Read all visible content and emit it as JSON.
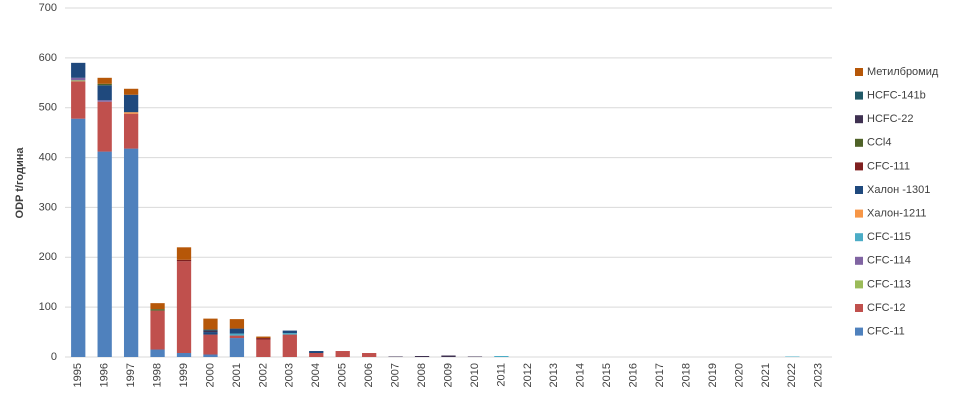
{
  "chart_data": {
    "type": "stacked-bar",
    "y_label": "ODP t/година",
    "categories": [
      "1995",
      "1996",
      "1997",
      "1998",
      "1999",
      "2000",
      "2001",
      "2002",
      "2003",
      "2004",
      "2005",
      "2006",
      "2007",
      "2008",
      "2009",
      "2010",
      "2011",
      "2012",
      "2013",
      "2014",
      "2015",
      "2016",
      "2017",
      "2018",
      "2019",
      "2020",
      "2021",
      "2022",
      "2023"
    ],
    "ylim": [
      0,
      700
    ],
    "yticks": [
      0,
      100,
      200,
      300,
      400,
      500,
      600,
      700
    ],
    "grid": true,
    "legend": "right",
    "series": [
      {
        "name": "CFC-11",
        "color": "#4f81bd",
        "values": [
          478,
          412,
          418,
          15,
          8,
          5,
          38,
          0,
          0,
          0,
          0,
          0,
          0,
          0,
          0,
          0,
          0,
          0,
          0,
          0,
          0,
          0,
          0,
          0,
          0,
          0,
          0,
          0,
          0
        ]
      },
      {
        "name": "CFC-12",
        "color": "#c0504d",
        "values": [
          75,
          100,
          70,
          78,
          184,
          40,
          5,
          35,
          45,
          8,
          12,
          8,
          0,
          0,
          0,
          0,
          0,
          0,
          0,
          0,
          0,
          0,
          0,
          0,
          0,
          0,
          0,
          0,
          0
        ]
      },
      {
        "name": "CFC-113",
        "color": "#9bbb59",
        "values": [
          2,
          0,
          0,
          0,
          0,
          0,
          0,
          0,
          0,
          0,
          0,
          0,
          0,
          0,
          0,
          0,
          0,
          0,
          0,
          0,
          0,
          0,
          0,
          0,
          0,
          0,
          0,
          0,
          0
        ]
      },
      {
        "name": "CFC-114",
        "color": "#8064a2",
        "values": [
          5,
          3,
          0,
          0,
          0,
          0,
          0,
          0,
          0,
          0,
          0,
          0,
          0,
          0,
          0,
          0,
          0,
          0,
          0,
          0,
          0,
          0,
          0,
          0,
          0,
          0,
          0,
          0,
          0
        ]
      },
      {
        "name": "CFC-115",
        "color": "#4bacc6",
        "values": [
          0,
          0,
          0,
          0,
          0,
          0,
          4,
          0,
          3,
          0,
          0,
          0,
          0,
          0,
          0,
          0,
          2,
          0,
          0,
          0,
          0,
          0,
          0,
          0,
          0,
          0,
          0,
          1,
          0
        ]
      },
      {
        "name": "Халон-1211",
        "color": "#f79646",
        "values": [
          0,
          0,
          3,
          0,
          0,
          0,
          0,
          0,
          0,
          0,
          0,
          0,
          0,
          0,
          0,
          0,
          0,
          0,
          0,
          0,
          0,
          0,
          0,
          0,
          0,
          0,
          0,
          0,
          0
        ]
      },
      {
        "name": "Халон -1301",
        "color": "#1f497d",
        "values": [
          30,
          30,
          35,
          0,
          0,
          5,
          10,
          0,
          5,
          4,
          0,
          0,
          0,
          0,
          0,
          0,
          0,
          0,
          0,
          0,
          0,
          0,
          0,
          0,
          0,
          0,
          0,
          0,
          0
        ]
      },
      {
        "name": "CFC-111",
        "color": "#7f1f1f",
        "values": [
          0,
          0,
          0,
          0,
          3,
          0,
          0,
          3,
          0,
          0,
          0,
          0,
          0,
          0,
          0,
          0,
          0,
          0,
          0,
          0,
          0,
          0,
          0,
          0,
          0,
          0,
          0,
          0,
          0
        ]
      },
      {
        "name": "CCl4",
        "color": "#4f6228",
        "values": [
          0,
          3,
          0,
          3,
          0,
          0,
          0,
          0,
          0,
          0,
          0,
          0,
          0,
          0,
          0,
          0,
          0,
          0,
          0,
          0,
          0,
          0,
          0,
          0,
          0,
          0,
          0,
          0,
          0
        ]
      },
      {
        "name": "HCFC-22",
        "color": "#3f3151",
        "values": [
          0,
          0,
          0,
          0,
          0,
          3,
          0,
          0,
          0,
          0,
          0,
          0,
          1,
          2,
          3,
          1,
          0,
          0,
          0,
          0,
          0,
          0,
          0,
          0,
          0,
          0,
          0,
          0,
          0
        ]
      },
      {
        "name": "HCFC-141b",
        "color": "#215967",
        "values": [
          0,
          0,
          0,
          0,
          0,
          2,
          0,
          0,
          0,
          0,
          0,
          0,
          0,
          0,
          0,
          0,
          0,
          0,
          0,
          0,
          0,
          0,
          0,
          0,
          0,
          0,
          0,
          0,
          0
        ]
      },
      {
        "name": "Метилбромид",
        "color": "#b65708",
        "values": [
          0,
          12,
          12,
          12,
          25,
          22,
          19,
          3,
          0,
          0,
          0,
          0,
          0,
          0,
          0,
          0,
          0,
          0,
          0,
          0,
          0,
          0,
          0,
          0,
          0,
          0,
          0,
          0,
          0
        ]
      }
    ]
  }
}
